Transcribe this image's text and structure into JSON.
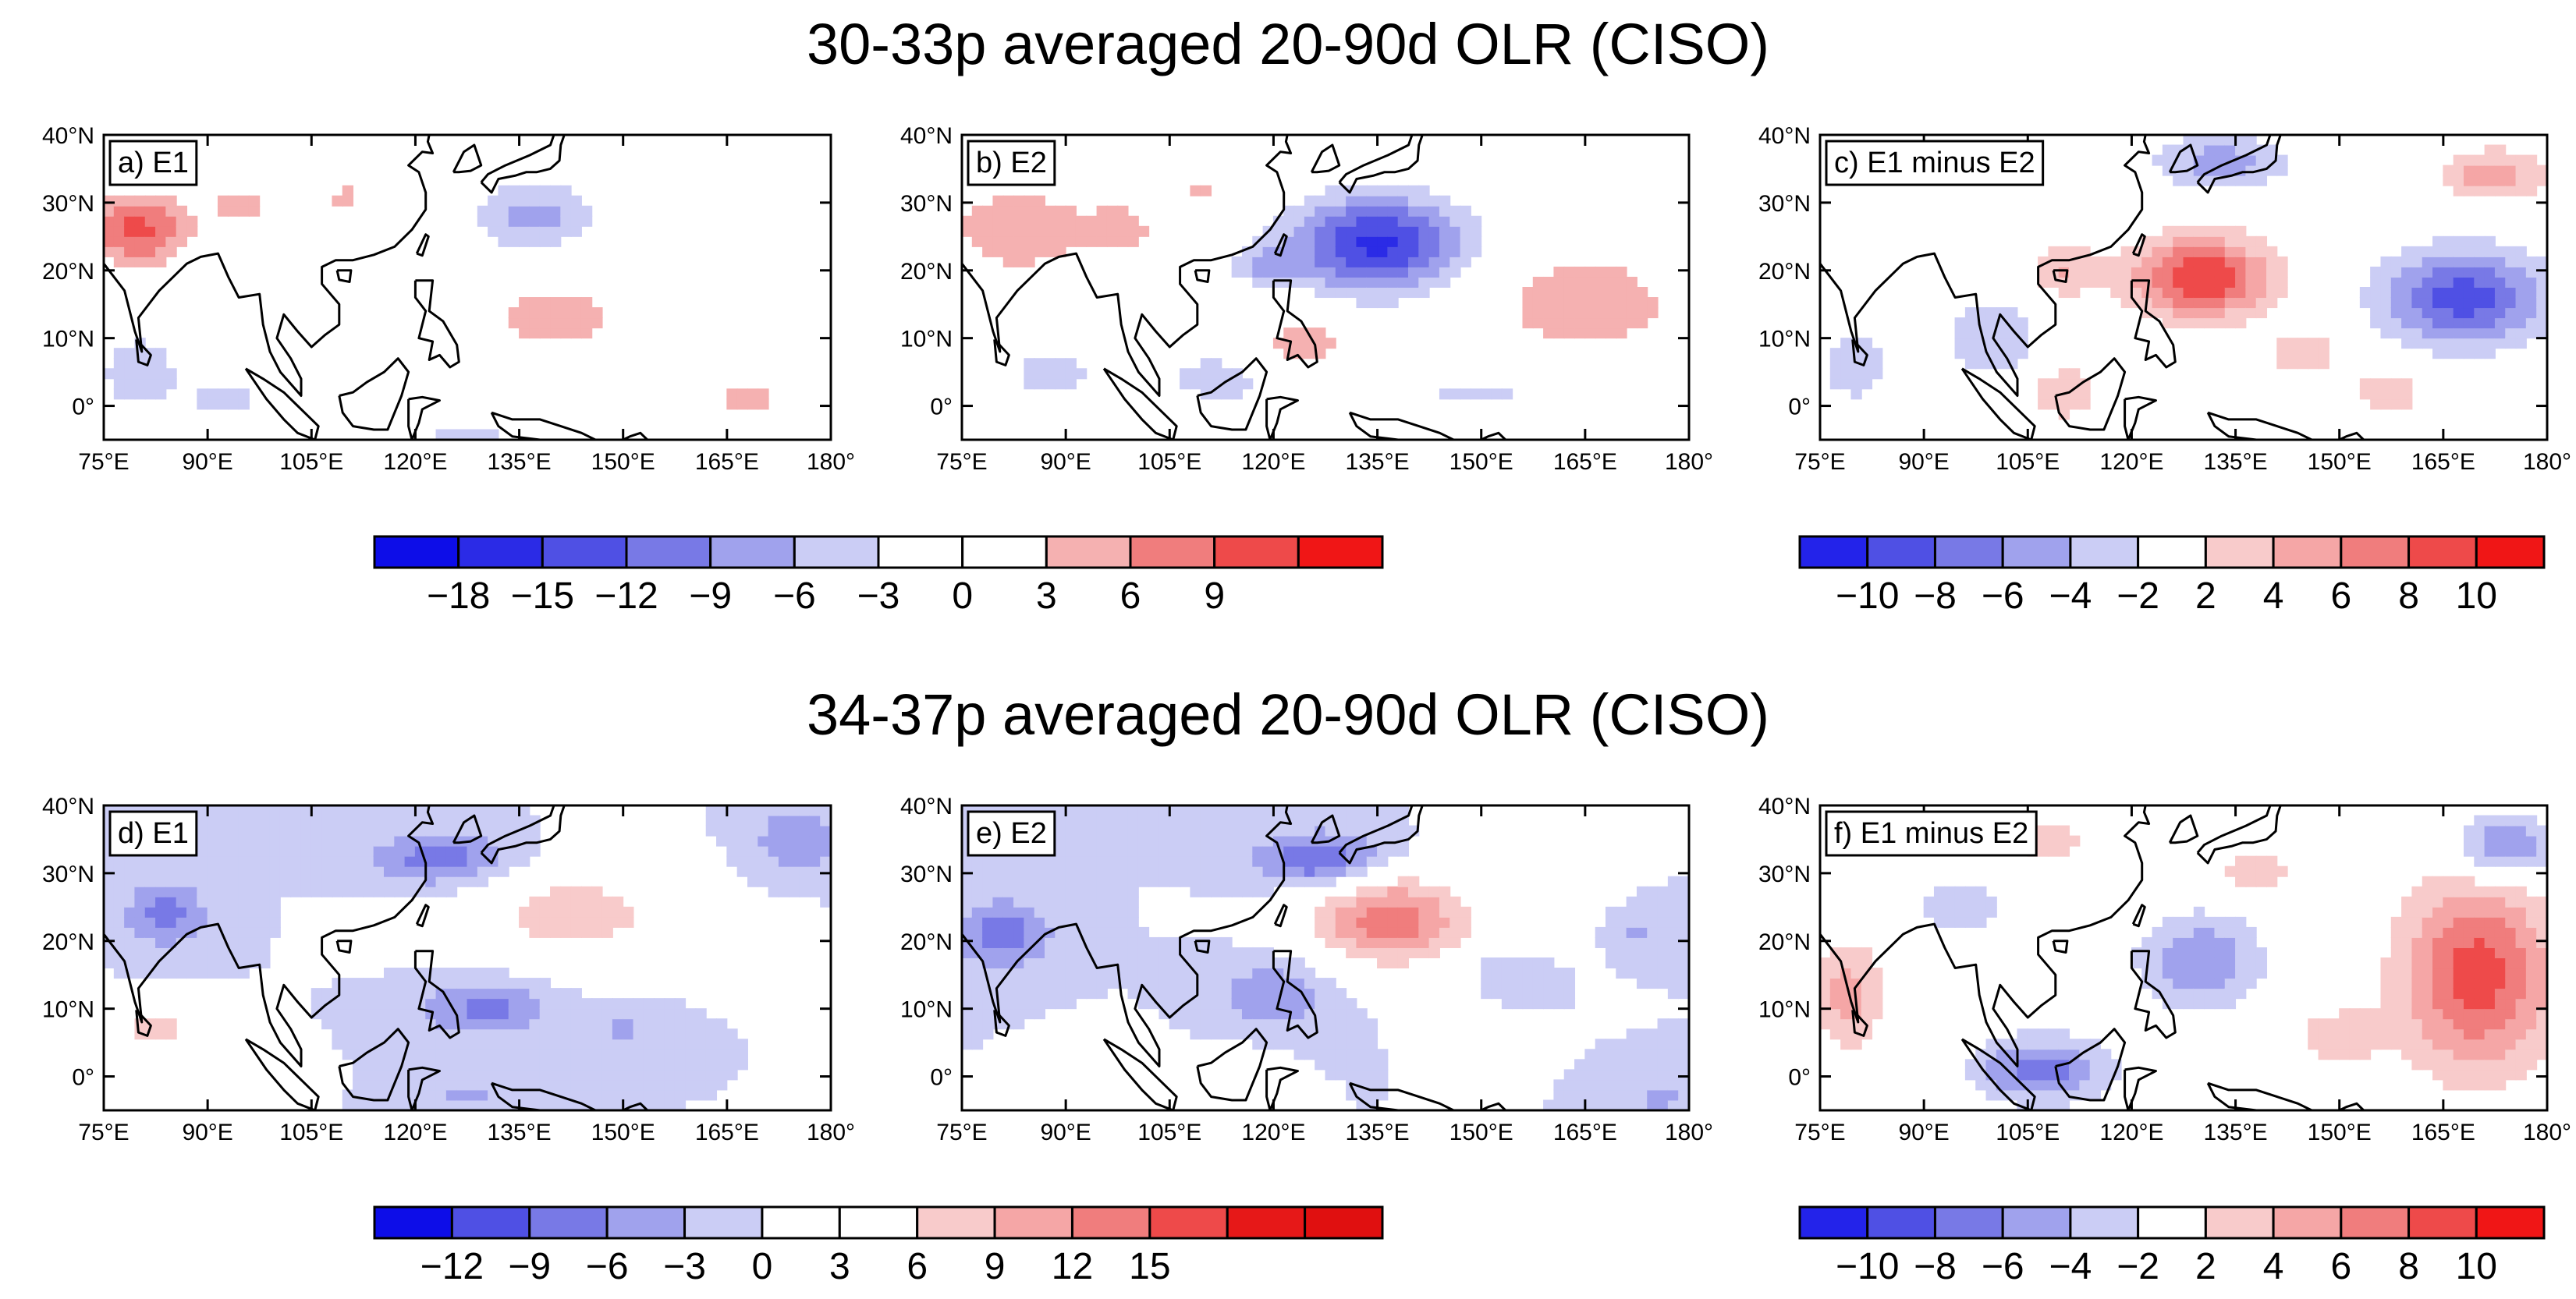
{
  "figure": {
    "row_titles": [
      "30-33p averaged 20-90d OLR (CISO)",
      "34-37p averaged 20-90d OLR (CISO)"
    ]
  },
  "chart_data": [
    {
      "type": "heatmap",
      "id": "a",
      "label": "a) E1",
      "row": 0,
      "col": 0,
      "xlim": [
        75,
        180
      ],
      "ylim": [
        -5,
        40
      ],
      "x_ticks": [
        "75°E",
        "90°E",
        "105°E",
        "120°E",
        "135°E",
        "150°E",
        "165°E",
        "180°"
      ],
      "y_ticks": [
        "40°N",
        "30°N",
        "20°N",
        "10°N",
        "0°"
      ],
      "x_tick_values": [
        75,
        90,
        105,
        120,
        135,
        150,
        165,
        180
      ],
      "y_tick_values": [
        40,
        30,
        20,
        10,
        0
      ],
      "stippled": false,
      "blobs": [
        {
          "lon": 80,
          "lat": 26,
          "rlon": 7,
          "rlat": 5,
          "v": 10
        },
        {
          "lon": 95,
          "lat": 30,
          "rlon": 6,
          "rlat": 3,
          "v": 4
        },
        {
          "lon": 110,
          "lat": 31,
          "rlon": 4,
          "rlat": 3,
          "v": 3.5
        },
        {
          "lon": 137,
          "lat": 28,
          "rlon": 9,
          "rlat": 5,
          "v": -7
        },
        {
          "lon": 140,
          "lat": 13,
          "rlon": 9,
          "rlat": 5,
          "v": 5
        },
        {
          "lon": 80,
          "lat": 5,
          "rlon": 6,
          "rlat": 6,
          "v": -5
        },
        {
          "lon": 93,
          "lat": 1,
          "rlon": 7,
          "rlat": 4,
          "v": -4
        },
        {
          "lon": 168,
          "lat": 1,
          "rlon": 7,
          "rlat": 4,
          "v": 4
        },
        {
          "lon": 127,
          "lat": -4,
          "rlon": 12,
          "rlat": 2,
          "v": -3.5
        }
      ]
    },
    {
      "type": "heatmap",
      "id": "b",
      "label": "b) E2",
      "row": 0,
      "col": 1,
      "xlim": [
        75,
        180
      ],
      "ylim": [
        -5,
        40
      ],
      "x_ticks": [
        "75°E",
        "90°E",
        "105°E",
        "120°E",
        "135°E",
        "150°E",
        "165°E",
        "180°"
      ],
      "y_ticks": [
        "40°N",
        "30°N",
        "20°N",
        "10°N",
        "0°"
      ],
      "x_tick_values": [
        75,
        90,
        105,
        120,
        135,
        150,
        165,
        180
      ],
      "y_tick_values": [
        40,
        30,
        20,
        10,
        0
      ],
      "stippled": false,
      "blobs": [
        {
          "lon": 83,
          "lat": 26,
          "rlon": 9,
          "rlat": 6,
          "v": 6
        },
        {
          "lon": 98,
          "lat": 26,
          "rlon": 6,
          "rlat": 5,
          "v": 4
        },
        {
          "lon": 110,
          "lat": 32,
          "rlon": 4,
          "rlat": 3,
          "v": 3.5
        },
        {
          "lon": 135,
          "lat": 24,
          "rlon": 12,
          "rlat": 7,
          "v": -16
        },
        {
          "lon": 119,
          "lat": 21,
          "rlon": 5,
          "rlat": 3,
          "v": -6
        },
        {
          "lon": 165,
          "lat": 15,
          "rlon": 14,
          "rlat": 8,
          "v": 5
        },
        {
          "lon": 124,
          "lat": 9,
          "rlon": 7,
          "rlat": 4,
          "v": 5
        },
        {
          "lon": 88,
          "lat": 5,
          "rlon": 8,
          "rlat": 5,
          "v": -4
        },
        {
          "lon": 112,
          "lat": 4,
          "rlon": 10,
          "rlat": 5,
          "v": -4
        },
        {
          "lon": 150,
          "lat": 2,
          "rlon": 15,
          "rlat": 3,
          "v": -3.5
        }
      ]
    },
    {
      "type": "heatmap",
      "id": "c",
      "label": "c) E1 minus E2",
      "row": 0,
      "col": 2,
      "xlim": [
        75,
        180
      ],
      "ylim": [
        -5,
        40
      ],
      "x_ticks": [
        "75°E",
        "90°E",
        "105°E",
        "120°E",
        "135°E",
        "150°E",
        "165°E",
        "180°"
      ],
      "y_ticks": [
        "40°N",
        "30°N",
        "20°N",
        "10°N",
        "0°"
      ],
      "x_tick_values": [
        75,
        90,
        105,
        120,
        135,
        150,
        165,
        180
      ],
      "y_tick_values": [
        40,
        30,
        20,
        10,
        0
      ],
      "stippled": true,
      "blobs": [
        {
          "lon": 130,
          "lat": 19,
          "rlon": 10,
          "rlat": 6,
          "v": 10
        },
        {
          "lon": 168,
          "lat": 16,
          "rlon": 12,
          "rlat": 7,
          "v": -9
        },
        {
          "lon": 133,
          "lat": 36,
          "rlon": 10,
          "rlat": 4,
          "v": -5
        },
        {
          "lon": 172,
          "lat": 34,
          "rlon": 8,
          "rlat": 4,
          "v": 5
        },
        {
          "lon": 110,
          "lat": 20,
          "rlon": 5,
          "rlat": 4,
          "v": 4
        },
        {
          "lon": 100,
          "lat": 10,
          "rlon": 7,
          "rlat": 6,
          "v": -4
        },
        {
          "lon": 110,
          "lat": 2,
          "rlon": 5,
          "rlat": 4,
          "v": 4
        },
        {
          "lon": 157,
          "lat": 2,
          "rlon": 5,
          "rlat": 3,
          "v": 4
        },
        {
          "lon": 80,
          "lat": 6,
          "rlon": 5,
          "rlat": 6,
          "v": -3.5
        },
        {
          "lon": 145,
          "lat": 8,
          "rlon": 7,
          "rlat": 4,
          "v": 3
        }
      ]
    },
    {
      "type": "heatmap",
      "id": "d",
      "label": "d) E1",
      "row": 1,
      "col": 0,
      "xlim": [
        75,
        180
      ],
      "ylim": [
        -5,
        40
      ],
      "x_ticks": [
        "75°E",
        "90°E",
        "105°E",
        "120°E",
        "135°E",
        "150°E",
        "165°E",
        "180°"
      ],
      "y_ticks": [
        "40°N",
        "30°N",
        "20°N",
        "10°N",
        "0°"
      ],
      "x_tick_values": [
        75,
        90,
        105,
        120,
        135,
        150,
        165,
        180
      ],
      "y_tick_values": [
        40,
        30,
        20,
        10,
        0
      ],
      "stippled": false,
      "blobs": [
        {
          "lon": 84,
          "lat": 24,
          "rlon": 6,
          "rlat": 5,
          "v": -7
        },
        {
          "lon": 124,
          "lat": 32,
          "rlon": 10,
          "rlat": 4,
          "v": -8
        },
        {
          "lon": 175,
          "lat": 35,
          "rlon": 6,
          "rlat": 5,
          "v": -6
        },
        {
          "lon": 143,
          "lat": 24,
          "rlon": 16,
          "rlat": 7,
          "v": 8
        },
        {
          "lon": 170,
          "lat": 19,
          "rlon": 9,
          "rlat": 4,
          "v": 3.5
        },
        {
          "lon": 130,
          "lat": 10,
          "rlon": 9,
          "rlat": 4,
          "v": -7
        },
        {
          "lon": 82,
          "lat": 7,
          "rlon": 8,
          "rlat": 4,
          "v": 7
        },
        {
          "lon": 150,
          "lat": 7,
          "rlon": 6,
          "rlat": 3,
          "v": -3.5
        },
        {
          "lon": 128,
          "lat": -3,
          "rlon": 6,
          "rlat": 2,
          "v": -4
        },
        {
          "lon": 96,
          "lat": 2,
          "rlon": 5,
          "rlat": 4,
          "v": 3.5
        }
      ]
    },
    {
      "type": "heatmap",
      "id": "e",
      "label": "e) E2",
      "row": 1,
      "col": 1,
      "xlim": [
        75,
        180
      ],
      "ylim": [
        -5,
        40
      ],
      "x_ticks": [
        "75°E",
        "90°E",
        "105°E",
        "120°E",
        "135°E",
        "150°E",
        "165°E",
        "180°"
      ],
      "y_ticks": [
        "40°N",
        "30°N",
        "20°N",
        "10°N",
        "0°"
      ],
      "x_tick_values": [
        75,
        90,
        105,
        120,
        135,
        150,
        165,
        180
      ],
      "y_tick_values": [
        40,
        30,
        20,
        10,
        0
      ],
      "stippled": false,
      "blobs": [
        {
          "lon": 81,
          "lat": 21,
          "rlon": 7,
          "rlat": 5,
          "v": -8
        },
        {
          "lon": 127,
          "lat": 32,
          "rlon": 9,
          "rlat": 4,
          "v": -10
        },
        {
          "lon": 137,
          "lat": 23,
          "rlon": 12,
          "rlat": 7,
          "v": 14
        },
        {
          "lon": 160,
          "lat": 22,
          "rlon": 7,
          "rlat": 5,
          "v": 4
        },
        {
          "lon": 120,
          "lat": 12,
          "rlon": 8,
          "rlat": 5,
          "v": -6
        },
        {
          "lon": 96,
          "lat": 2,
          "rlon": 6,
          "rlat": 4,
          "v": 4
        },
        {
          "lon": 113,
          "lat": 1,
          "rlon": 6,
          "rlat": 3,
          "v": 5
        },
        {
          "lon": 155,
          "lat": 16,
          "rlon": 6,
          "rlat": 3,
          "v": -3.5
        },
        {
          "lon": 172,
          "lat": 21,
          "rlon": 5,
          "rlat": 3,
          "v": -3.5
        },
        {
          "lon": 176,
          "lat": -3,
          "rlon": 4,
          "rlat": 3,
          "v": -4
        }
      ]
    },
    {
      "type": "heatmap",
      "id": "f",
      "label": "f) E1 minus E2",
      "row": 1,
      "col": 2,
      "xlim": [
        75,
        180
      ],
      "ylim": [
        -5,
        40
      ],
      "x_ticks": [
        "75°E",
        "90°E",
        "105°E",
        "120°E",
        "135°E",
        "150°E",
        "165°E",
        "180°"
      ],
      "y_ticks": [
        "40°N",
        "30°N",
        "20°N",
        "10°N",
        "0°"
      ],
      "x_tick_values": [
        75,
        90,
        105,
        120,
        135,
        150,
        165,
        180
      ],
      "y_tick_values": [
        40,
        30,
        20,
        10,
        0
      ],
      "stippled": true,
      "blobs": [
        {
          "lon": 170,
          "lat": 15,
          "rlon": 11,
          "rlat": 14,
          "v": 9
        },
        {
          "lon": 174,
          "lat": 34,
          "rlon": 7,
          "rlat": 5,
          "v": -7
        },
        {
          "lon": 130,
          "lat": 17,
          "rlon": 9,
          "rlat": 7,
          "v": -6
        },
        {
          "lon": 107,
          "lat": 1,
          "rlon": 10,
          "rlat": 5,
          "v": -7
        },
        {
          "lon": 79,
          "lat": 12,
          "rlon": 5,
          "rlat": 8,
          "v": 5
        },
        {
          "lon": 108,
          "lat": 35,
          "rlon": 6,
          "rlat": 3,
          "v": 3.5
        },
        {
          "lon": 95,
          "lat": 25,
          "rlon": 7,
          "rlat": 4,
          "v": -3.5
        },
        {
          "lon": 150,
          "lat": 6,
          "rlon": 7,
          "rlat": 4,
          "v": 3.5
        },
        {
          "lon": 138,
          "lat": 30,
          "rlon": 6,
          "rlat": 3,
          "v": 3.5
        }
      ]
    }
  ],
  "colorbars": [
    {
      "id": "cb1",
      "row": 0,
      "applies_to": "a,b",
      "levels": [
        -18,
        -15,
        -12,
        -9,
        -6,
        -3,
        0,
        3,
        6,
        9
      ],
      "labels": [
        "−18",
        "−15",
        "−12",
        "−9",
        "−6",
        "−3",
        "0",
        "3",
        "6",
        "9"
      ],
      "colors": [
        "#0d0de8",
        "#2b2be6",
        "#4f50e4",
        "#7879e6",
        "#a0a2ed",
        "#cbcdf5",
        "#ffffff",
        "#ffffff",
        "#f5b1b1",
        "#f07d7d",
        "#ee4a4a",
        "#f01616"
      ]
    },
    {
      "id": "cb2",
      "row": 0,
      "applies_to": "c",
      "levels": [
        -10,
        -8,
        -6,
        -4,
        -2,
        2,
        4,
        6,
        8,
        10
      ],
      "labels": [
        "−10",
        "−8",
        "−6",
        "−4",
        "−2",
        "2",
        "4",
        "6",
        "8",
        "10"
      ],
      "colors": [
        "#2323ea",
        "#4f50e4",
        "#7879e6",
        "#a0a2ed",
        "#cbcdf5",
        "#ffffff",
        "#f8cbcb",
        "#f5a6a6",
        "#f07d7d",
        "#ee4a4a",
        "#f01616"
      ]
    },
    {
      "id": "cb3",
      "row": 1,
      "applies_to": "d,e",
      "levels": [
        -12,
        -9,
        -6,
        -3,
        0,
        3,
        6,
        9,
        12,
        15
      ],
      "labels": [
        "−12",
        "−9",
        "−6",
        "−3",
        "0",
        "3",
        "6",
        "9",
        "12",
        "15"
      ],
      "colors": [
        "#0d0de8",
        "#4f50e4",
        "#7879e6",
        "#a0a2ed",
        "#cbcdf5",
        "#ffffff",
        "#ffffff",
        "#f8cbcb",
        "#f5a6a6",
        "#f07d7d",
        "#ee4a4a",
        "#e61818",
        "#e01010"
      ]
    },
    {
      "id": "cb4",
      "row": 1,
      "applies_to": "f",
      "levels": [
        -10,
        -8,
        -6,
        -4,
        -2,
        2,
        4,
        6,
        8,
        10
      ],
      "labels": [
        "−10",
        "−8",
        "−6",
        "−4",
        "−2",
        "2",
        "4",
        "6",
        "8",
        "10"
      ],
      "colors": [
        "#2323ea",
        "#4f50e4",
        "#7879e6",
        "#a0a2ed",
        "#cbcdf5",
        "#ffffff",
        "#f8cbcb",
        "#f5a6a6",
        "#f07d7d",
        "#ee4a4a",
        "#f01616"
      ]
    }
  ]
}
